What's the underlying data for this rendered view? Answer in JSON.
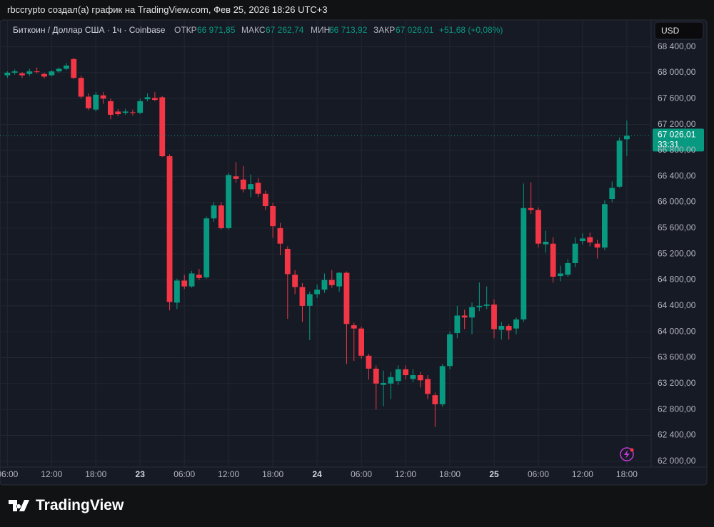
{
  "header": {
    "text": "rbccrypto создал(а) график на TradingView.com, Фев 25, 2026 18:26 UTC+3"
  },
  "legend": {
    "symbol": "Биткоин / Доллар США · 1ч · Coinbase",
    "open_label": "ОТКР",
    "open": "66 971,85",
    "high_label": "МАКС",
    "high": "67 262,74",
    "low_label": "МИН",
    "low": "66 713,92",
    "close_label": "ЗАКР",
    "close": "67 026,01",
    "change": "+51,68 (+0,08%)"
  },
  "currency_button": "USD",
  "price_label": {
    "price": "67 026,01",
    "countdown": "33:31"
  },
  "brand": "TradingView",
  "chart_data": {
    "type": "candlestick",
    "up_color": "#089981",
    "down_color": "#f23645",
    "grid": true,
    "xlim": [
      -1,
      87.3
    ],
    "ylim": [
      61910,
      68814
    ],
    "xticks": [
      {
        "value": 0,
        "label": "06:00"
      },
      {
        "value": 6,
        "label": "12:00"
      },
      {
        "value": 12,
        "label": "18:00"
      },
      {
        "value": 18,
        "label": "23"
      },
      {
        "value": 24,
        "label": "06:00"
      },
      {
        "value": 30,
        "label": "12:00"
      },
      {
        "value": 36,
        "label": "18:00"
      },
      {
        "value": 42,
        "label": "24"
      },
      {
        "value": 48,
        "label": "06:00"
      },
      {
        "value": 54,
        "label": "12:00"
      },
      {
        "value": 60,
        "label": "18:00"
      },
      {
        "value": 66,
        "label": "25"
      },
      {
        "value": 72,
        "label": "06:00"
      },
      {
        "value": 78,
        "label": "12:00"
      },
      {
        "value": 84,
        "label": "18:00"
      }
    ],
    "yticks": [
      {
        "value": 62000,
        "label": "62 000,00"
      },
      {
        "value": 62400,
        "label": "62 400,00"
      },
      {
        "value": 62800,
        "label": "62 800,00"
      },
      {
        "value": 63200,
        "label": "63 200,00"
      },
      {
        "value": 63600,
        "label": "63 600,00"
      },
      {
        "value": 64000,
        "label": "64 000,00"
      },
      {
        "value": 64400,
        "label": "64 400,00"
      },
      {
        "value": 64800,
        "label": "64 800,00"
      },
      {
        "value": 65200,
        "label": "65 200,00"
      },
      {
        "value": 65600,
        "label": "65 600,00"
      },
      {
        "value": 66000,
        "label": "66 000,00"
      },
      {
        "value": 66400,
        "label": "66 400,00"
      },
      {
        "value": 66800,
        "label": "66 800,00"
      },
      {
        "value": 67200,
        "label": "67 200,00"
      },
      {
        "value": 67600,
        "label": "67 600,00"
      },
      {
        "value": 68000,
        "label": "68 000,00"
      },
      {
        "value": 68400,
        "label": "68 400,00"
      }
    ],
    "candles": [
      {
        "o": 67960,
        "h": 68020,
        "l": 67920,
        "c": 68000
      },
      {
        "o": 68000,
        "h": 68050,
        "l": 67970,
        "c": 68020
      },
      {
        "o": 67990,
        "h": 68010,
        "l": 67920,
        "c": 67960
      },
      {
        "o": 67980,
        "h": 68060,
        "l": 67950,
        "c": 68020
      },
      {
        "o": 68020,
        "h": 68080,
        "l": 67990,
        "c": 68010
      },
      {
        "o": 67980,
        "h": 68000,
        "l": 67910,
        "c": 67940
      },
      {
        "o": 67960,
        "h": 68040,
        "l": 67940,
        "c": 68020
      },
      {
        "o": 68020,
        "h": 68080,
        "l": 68000,
        "c": 68060
      },
      {
        "o": 68060,
        "h": 68150,
        "l": 68040,
        "c": 68110
      },
      {
        "o": 68210,
        "h": 68230,
        "l": 67900,
        "c": 67920
      },
      {
        "o": 67920,
        "h": 67950,
        "l": 67600,
        "c": 67630
      },
      {
        "o": 67630,
        "h": 67680,
        "l": 67420,
        "c": 67450
      },
      {
        "o": 67430,
        "h": 67700,
        "l": 67400,
        "c": 67660
      },
      {
        "o": 67650,
        "h": 67700,
        "l": 67520,
        "c": 67600
      },
      {
        "o": 67560,
        "h": 67600,
        "l": 67280,
        "c": 67350
      },
      {
        "o": 67400,
        "h": 67440,
        "l": 67330,
        "c": 67360
      },
      {
        "o": 67380,
        "h": 67440,
        "l": 67350,
        "c": 67400
      },
      {
        "o": 67390,
        "h": 67430,
        "l": 67340,
        "c": 67380
      },
      {
        "o": 67380,
        "h": 67600,
        "l": 67360,
        "c": 67560
      },
      {
        "o": 67590,
        "h": 67680,
        "l": 67560,
        "c": 67620
      },
      {
        "o": 67610,
        "h": 67700,
        "l": 67560,
        "c": 67580
      },
      {
        "o": 67620,
        "h": 67640,
        "l": 66700,
        "c": 66710
      },
      {
        "o": 66710,
        "h": 66740,
        "l": 64330,
        "c": 64460
      },
      {
        "o": 64450,
        "h": 64820,
        "l": 64350,
        "c": 64790
      },
      {
        "o": 64790,
        "h": 64880,
        "l": 64660,
        "c": 64700
      },
      {
        "o": 64700,
        "h": 64940,
        "l": 64680,
        "c": 64900
      },
      {
        "o": 64880,
        "h": 64970,
        "l": 64800,
        "c": 64830
      },
      {
        "o": 64840,
        "h": 65780,
        "l": 64820,
        "c": 65750
      },
      {
        "o": 65750,
        "h": 66000,
        "l": 65700,
        "c": 65950
      },
      {
        "o": 65950,
        "h": 66000,
        "l": 65580,
        "c": 65600
      },
      {
        "o": 65600,
        "h": 66450,
        "l": 65580,
        "c": 66420
      },
      {
        "o": 66400,
        "h": 66620,
        "l": 66300,
        "c": 66360
      },
      {
        "o": 66350,
        "h": 66560,
        "l": 66150,
        "c": 66200
      },
      {
        "o": 66200,
        "h": 66430,
        "l": 66080,
        "c": 66280
      },
      {
        "o": 66300,
        "h": 66370,
        "l": 66080,
        "c": 66130
      },
      {
        "o": 66130,
        "h": 66180,
        "l": 65880,
        "c": 65940
      },
      {
        "o": 65940,
        "h": 65990,
        "l": 65450,
        "c": 65630
      },
      {
        "o": 65600,
        "h": 65680,
        "l": 65180,
        "c": 65360
      },
      {
        "o": 65280,
        "h": 65320,
        "l": 64200,
        "c": 64890
      },
      {
        "o": 64880,
        "h": 64950,
        "l": 64580,
        "c": 64690
      },
      {
        "o": 64690,
        "h": 64750,
        "l": 64150,
        "c": 64400
      },
      {
        "o": 64400,
        "h": 64620,
        "l": 63870,
        "c": 64580
      },
      {
        "o": 64580,
        "h": 64730,
        "l": 64520,
        "c": 64650
      },
      {
        "o": 64650,
        "h": 64900,
        "l": 64600,
        "c": 64800
      },
      {
        "o": 64800,
        "h": 64950,
        "l": 64680,
        "c": 64720
      },
      {
        "o": 64700,
        "h": 64920,
        "l": 64620,
        "c": 64910
      },
      {
        "o": 64910,
        "h": 64930,
        "l": 63500,
        "c": 64120
      },
      {
        "o": 64100,
        "h": 64140,
        "l": 63550,
        "c": 64050
      },
      {
        "o": 64050,
        "h": 64080,
        "l": 63580,
        "c": 63630
      },
      {
        "o": 63630,
        "h": 63660,
        "l": 63260,
        "c": 63430
      },
      {
        "o": 63430,
        "h": 63480,
        "l": 62800,
        "c": 63200
      },
      {
        "o": 63180,
        "h": 63400,
        "l": 62850,
        "c": 63210
      },
      {
        "o": 63200,
        "h": 63380,
        "l": 62960,
        "c": 63300
      },
      {
        "o": 63240,
        "h": 63480,
        "l": 63180,
        "c": 63420
      },
      {
        "o": 63420,
        "h": 63480,
        "l": 63260,
        "c": 63330
      },
      {
        "o": 63270,
        "h": 63420,
        "l": 63220,
        "c": 63330
      },
      {
        "o": 63330,
        "h": 63380,
        "l": 63140,
        "c": 63250
      },
      {
        "o": 63270,
        "h": 63330,
        "l": 62960,
        "c": 63040
      },
      {
        "o": 63020,
        "h": 63060,
        "l": 62530,
        "c": 62880
      },
      {
        "o": 62880,
        "h": 63500,
        "l": 62840,
        "c": 63470
      },
      {
        "o": 63470,
        "h": 64000,
        "l": 63420,
        "c": 63960
      },
      {
        "o": 63980,
        "h": 64400,
        "l": 63900,
        "c": 64250
      },
      {
        "o": 64250,
        "h": 64340,
        "l": 64040,
        "c": 64220
      },
      {
        "o": 64220,
        "h": 64450,
        "l": 63960,
        "c": 64380
      },
      {
        "o": 64380,
        "h": 64760,
        "l": 64320,
        "c": 64400
      },
      {
        "o": 64400,
        "h": 64700,
        "l": 64350,
        "c": 64420
      },
      {
        "o": 64420,
        "h": 64500,
        "l": 63900,
        "c": 64040
      },
      {
        "o": 64030,
        "h": 64150,
        "l": 63880,
        "c": 64090
      },
      {
        "o": 64090,
        "h": 64120,
        "l": 63880,
        "c": 64020
      },
      {
        "o": 64050,
        "h": 64220,
        "l": 63960,
        "c": 64190
      },
      {
        "o": 64190,
        "h": 66290,
        "l": 64150,
        "c": 65910
      },
      {
        "o": 65910,
        "h": 66310,
        "l": 65820,
        "c": 65880
      },
      {
        "o": 65880,
        "h": 65920,
        "l": 65300,
        "c": 65360
      },
      {
        "o": 65350,
        "h": 65560,
        "l": 65220,
        "c": 65390
      },
      {
        "o": 65360,
        "h": 65460,
        "l": 64760,
        "c": 64850
      },
      {
        "o": 64860,
        "h": 65020,
        "l": 64780,
        "c": 64900
      },
      {
        "o": 64880,
        "h": 65120,
        "l": 64850,
        "c": 65060
      },
      {
        "o": 65060,
        "h": 65460,
        "l": 65000,
        "c": 65360
      },
      {
        "o": 65400,
        "h": 65520,
        "l": 65350,
        "c": 65440
      },
      {
        "o": 65460,
        "h": 65530,
        "l": 65320,
        "c": 65380
      },
      {
        "o": 65360,
        "h": 65420,
        "l": 65130,
        "c": 65300
      },
      {
        "o": 65300,
        "h": 66030,
        "l": 65260,
        "c": 65970
      },
      {
        "o": 66050,
        "h": 66320,
        "l": 66000,
        "c": 66220
      },
      {
        "o": 66240,
        "h": 67000,
        "l": 66220,
        "c": 66950
      },
      {
        "o": 66971.85,
        "h": 67262.74,
        "l": 66713.92,
        "c": 67026.01
      }
    ]
  }
}
